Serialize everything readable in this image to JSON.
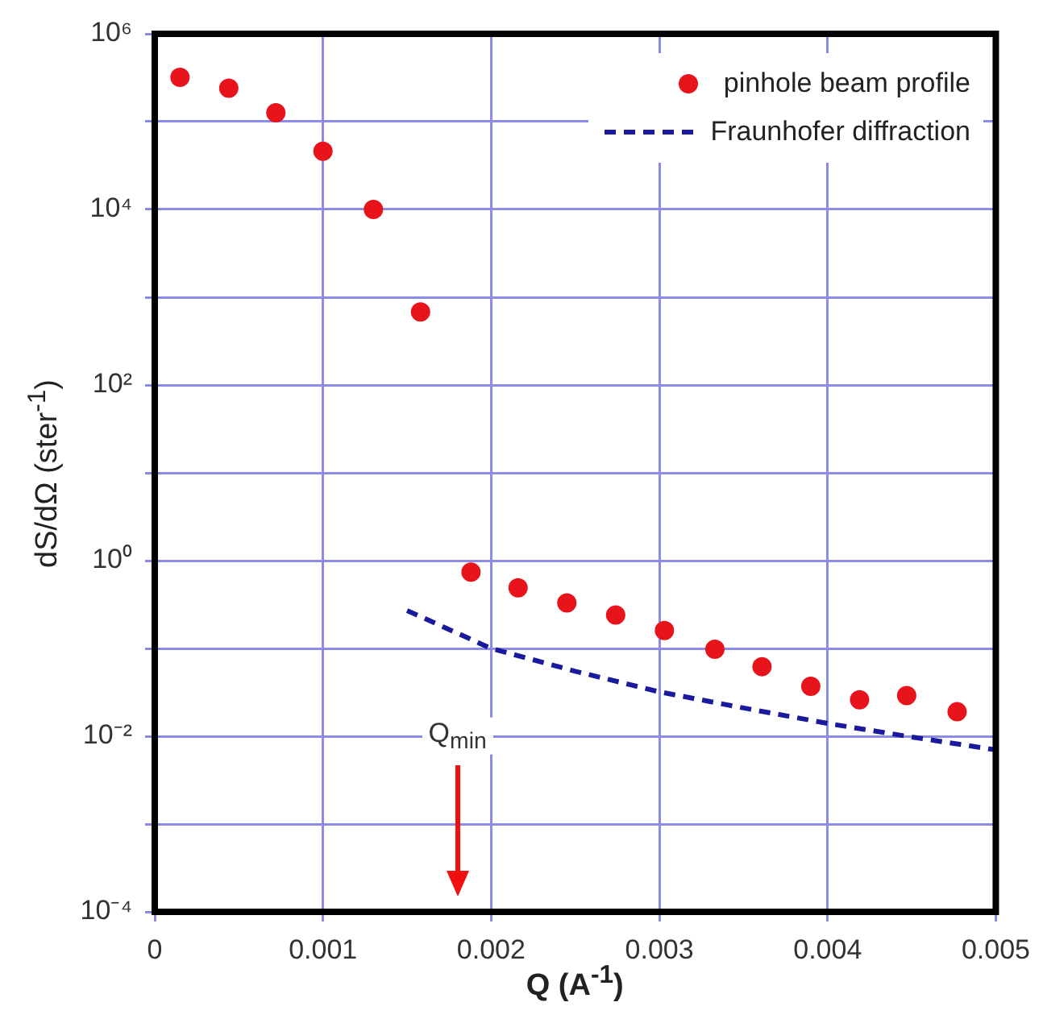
{
  "chart_data": {
    "type": "scatter",
    "xlabel": "Q (A$^{-1}$)",
    "ylabel": "dS/dΩ (ster$^{-1}$)",
    "log": "y",
    "grid": true,
    "legend": "top right",
    "xlim": [
      0,
      0.005
    ],
    "xticks": [
      0,
      0.001,
      0.002,
      0.003,
      0.004,
      0.005
    ],
    "ylim": [
      0.0001,
      1000000
    ],
    "yticks": [
      {
        "value": 0.0001,
        "label": "10⁻⁴"
      },
      {
        "value": 0.001,
        "label": null
      },
      {
        "value": 0.01,
        "label": "10⁻²"
      },
      {
        "value": 0.1,
        "label": null
      },
      {
        "value": 1,
        "label": "10⁰"
      },
      {
        "value": 10,
        "label": null
      },
      {
        "value": 100,
        "label": "10²"
      },
      {
        "value": 1000,
        "label": null
      },
      {
        "value": 10000,
        "label": "10⁴"
      },
      {
        "value": 100000,
        "label": null
      },
      {
        "value": 1000000,
        "label": "10⁶"
      }
    ],
    "series": [
      {
        "name": "pinhole beam profile",
        "marker": "circle",
        "color": "#e8141c",
        "x": [
          0.00015,
          0.00044,
          0.00072,
          0.001,
          0.0013,
          0.00158,
          0.00188,
          0.00216,
          0.00245,
          0.00274,
          0.00303,
          0.00333,
          0.00361,
          0.0039,
          0.00419,
          0.00447,
          0.00477
        ],
        "values": [
          320000,
          240000,
          126000,
          46000,
          10000,
          680,
          0.74,
          0.49,
          0.33,
          0.24,
          0.16,
          0.098,
          0.062,
          0.037,
          0.026,
          0.029,
          0.019
        ]
      },
      {
        "name": "Fraunhofer diffraction",
        "type": "line",
        "marker": "none",
        "line_style": "dashed",
        "color": "#1a1a9c",
        "x": [
          0.0015,
          0.002,
          0.0025,
          0.003,
          0.0035,
          0.004,
          0.0045,
          0.005
        ],
        "values": [
          0.27,
          0.1,
          0.055,
          0.032,
          0.021,
          0.014,
          0.0098,
          0.007
        ]
      }
    ],
    "annotations": [
      "Q$_{min}$"
    ]
  }
}
